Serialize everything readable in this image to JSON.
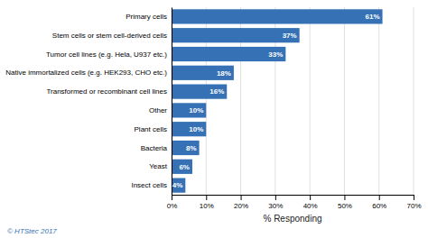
{
  "chart_data": {
    "type": "bar",
    "orientation": "horizontal",
    "categories": [
      "Insect cells",
      "Yeast",
      "Bacteria",
      "Plant cells",
      "Other",
      "Transformed or recombinant cell lines",
      "Native immortalized cells (e.g. HEK293, CHO etc.)",
      "Tumor cell lines (e.g. Hela, U937 etc.)",
      "Stem cells or stem cell-derived cells",
      "Primary cells"
    ],
    "values": [
      4,
      6,
      8,
      10,
      10,
      16,
      18,
      33,
      37,
      61
    ],
    "value_labels": [
      "4%",
      "6%",
      "8%",
      "10%",
      "10%",
      "16%",
      "18%",
      "33%",
      "37%",
      "61%"
    ],
    "data_labels": true,
    "color": "#3671B5",
    "x_label": "% Responding",
    "xlim": [
      0,
      70
    ],
    "xticks": [
      {
        "value": 0,
        "label": "0%"
      },
      {
        "value": 10,
        "label": "10%"
      },
      {
        "value": 20,
        "label": "20%"
      },
      {
        "value": 30,
        "label": "30%"
      },
      {
        "value": 40,
        "label": "40%"
      },
      {
        "value": 50,
        "label": "50%"
      },
      {
        "value": 60,
        "label": "60%"
      },
      {
        "value": 70,
        "label": "70%"
      }
    ],
    "grid": true,
    "annotations": [
      "© HTStec 2017"
    ]
  }
}
